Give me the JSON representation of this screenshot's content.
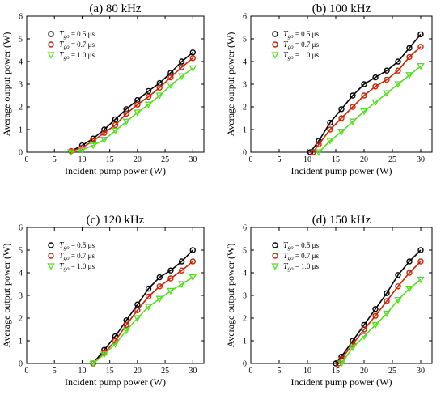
{
  "chart_data": [
    {
      "type": "line",
      "title": "(a) 80 kHz",
      "xlabel": "Incident pump power (W)",
      "ylabel": "Average output power (W)",
      "xlim": [
        0,
        32
      ],
      "ylim": [
        0,
        6
      ],
      "xticks": [
        0,
        5,
        10,
        15,
        20,
        25,
        30
      ],
      "yticks": [
        0,
        1,
        2,
        3,
        4,
        5,
        6
      ],
      "grid": false,
      "legend_position": "top-left",
      "series": [
        {
          "name": "T_go = 0.5 μs",
          "name_main": "T",
          "name_sub": "go",
          "name_rest": " = 0.5 μs",
          "marker": "circle",
          "color": "#000000",
          "x": [
            8,
            10,
            12,
            14,
            16,
            18,
            20,
            22,
            24,
            26,
            28,
            30
          ],
          "y": [
            0.05,
            0.3,
            0.6,
            1.0,
            1.45,
            1.9,
            2.3,
            2.7,
            3.05,
            3.5,
            4.0,
            4.4
          ]
        },
        {
          "name": "T_go = 0.7 μs",
          "name_main": "T",
          "name_sub": "go",
          "name_rest": " = 0.7 μs",
          "marker": "circle",
          "color": "#cc2200",
          "x": [
            8,
            10,
            12,
            14,
            16,
            18,
            20,
            22,
            24,
            26,
            28,
            30
          ],
          "y": [
            0.05,
            0.2,
            0.5,
            0.85,
            1.2,
            1.7,
            2.1,
            2.45,
            2.85,
            3.3,
            3.75,
            4.15
          ]
        },
        {
          "name": "T_go = 1.0 μs",
          "name_main": "T",
          "name_sub": "go",
          "name_rest": " = 1.0 μs",
          "marker": "triangle",
          "color": "#55dd22",
          "x": [
            8,
            10,
            12,
            14,
            16,
            18,
            20,
            22,
            24,
            26,
            28,
            30
          ],
          "y": [
            0.0,
            0.1,
            0.3,
            0.55,
            0.95,
            1.35,
            1.75,
            2.1,
            2.5,
            2.95,
            3.35,
            3.7
          ]
        }
      ]
    },
    {
      "type": "line",
      "title": "(b) 100 kHz",
      "xlabel": "Incident pump power (W)",
      "ylabel": "Average output power (W)",
      "xlim": [
        0,
        32
      ],
      "ylim": [
        0,
        6
      ],
      "xticks": [
        0,
        5,
        10,
        15,
        20,
        25,
        30
      ],
      "yticks": [
        0,
        1,
        2,
        3,
        4,
        5,
        6
      ],
      "grid": false,
      "legend_position": "top-left",
      "series": [
        {
          "name": "T_go = 0.5 μs",
          "name_main": "T",
          "name_sub": "go",
          "name_rest": " = 0.5 μs",
          "marker": "circle",
          "color": "#000000",
          "x": [
            10.5,
            12,
            14,
            16,
            18,
            20,
            22,
            24,
            26,
            28,
            30
          ],
          "y": [
            0.0,
            0.5,
            1.3,
            1.9,
            2.5,
            3.0,
            3.3,
            3.6,
            4.0,
            4.6,
            5.2
          ]
        },
        {
          "name": "T_go = 0.7 μs",
          "name_main": "T",
          "name_sub": "go",
          "name_rest": " = 0.7 μs",
          "marker": "circle",
          "color": "#cc2200",
          "x": [
            11,
            12,
            14,
            16,
            18,
            20,
            22,
            24,
            26,
            28,
            30
          ],
          "y": [
            0.0,
            0.35,
            1.0,
            1.5,
            2.0,
            2.5,
            2.9,
            3.2,
            3.6,
            4.2,
            4.65
          ]
        },
        {
          "name": "T_go = 1.0 μs",
          "name_main": "T",
          "name_sub": "go",
          "name_rest": " = 1.0 μs",
          "marker": "triangle",
          "color": "#55dd22",
          "x": [
            12,
            14,
            16,
            18,
            20,
            22,
            24,
            26,
            28,
            30
          ],
          "y": [
            0.0,
            0.5,
            0.9,
            1.35,
            1.8,
            2.2,
            2.6,
            3.0,
            3.4,
            3.8
          ]
        }
      ]
    },
    {
      "type": "line",
      "title": "(c) 120 kHz",
      "xlabel": "Incident pump power (W)",
      "ylabel": "Average output power (W)",
      "xlim": [
        0,
        32
      ],
      "ylim": [
        0,
        6
      ],
      "xticks": [
        0,
        5,
        10,
        15,
        20,
        25,
        30
      ],
      "yticks": [
        0,
        1,
        2,
        3,
        4,
        5,
        6
      ],
      "grid": false,
      "legend_position": "top-left",
      "series": [
        {
          "name": "T_go = 0.5 μs",
          "name_main": "T",
          "name_sub": "go",
          "name_rest": " = 0.5 μs",
          "marker": "circle",
          "color": "#000000",
          "x": [
            12,
            14,
            16,
            18,
            20,
            22,
            24,
            26,
            28,
            30
          ],
          "y": [
            0.0,
            0.6,
            1.2,
            1.9,
            2.6,
            3.3,
            3.8,
            4.1,
            4.5,
            5.0
          ]
        },
        {
          "name": "T_go = 0.7 μs",
          "name_main": "T",
          "name_sub": "go",
          "name_rest": " = 0.7 μs",
          "marker": "circle",
          "color": "#cc2200",
          "x": [
            12,
            14,
            16,
            18,
            20,
            22,
            24,
            26,
            28,
            30
          ],
          "y": [
            0.0,
            0.45,
            1.0,
            1.7,
            2.35,
            2.95,
            3.4,
            3.75,
            4.1,
            4.5
          ]
        },
        {
          "name": "T_go = 1.0 μs",
          "name_main": "T",
          "name_sub": "go",
          "name_rest": " = 1.0 μs",
          "marker": "triangle",
          "color": "#55dd22",
          "x": [
            12,
            14,
            16,
            18,
            20,
            22,
            24,
            26,
            28,
            30
          ],
          "y": [
            0.0,
            0.4,
            0.85,
            1.45,
            2.0,
            2.5,
            2.85,
            3.2,
            3.5,
            3.8
          ]
        }
      ]
    },
    {
      "type": "line",
      "title": "(d) 150 kHz",
      "xlabel": "Incident pump power (W)",
      "ylabel": "Average output power (W)",
      "xlim": [
        0,
        32
      ],
      "ylim": [
        0,
        6
      ],
      "xticks": [
        0,
        5,
        10,
        15,
        20,
        25,
        30
      ],
      "yticks": [
        0,
        1,
        2,
        3,
        4,
        5,
        6
      ],
      "grid": false,
      "legend_position": "top-left",
      "series": [
        {
          "name": "T_go = 0.5 μs",
          "name_main": "T",
          "name_sub": "go",
          "name_rest": " = 0.5 μs",
          "marker": "circle",
          "color": "#000000",
          "x": [
            15,
            16,
            18,
            20,
            22,
            24,
            26,
            28,
            30
          ],
          "y": [
            0.0,
            0.3,
            1.0,
            1.7,
            2.4,
            3.1,
            3.9,
            4.5,
            5.0
          ]
        },
        {
          "name": "T_go = 0.7 μs",
          "name_main": "T",
          "name_sub": "go",
          "name_rest": " = 0.7 μs",
          "marker": "circle",
          "color": "#cc2200",
          "x": [
            15.5,
            16,
            18,
            20,
            22,
            24,
            26,
            28,
            30
          ],
          "y": [
            0.0,
            0.2,
            0.85,
            1.5,
            2.1,
            2.75,
            3.4,
            4.0,
            4.5
          ]
        },
        {
          "name": "T_go = 1.0 μs",
          "name_main": "T",
          "name_sub": "go",
          "name_rest": " = 1.0 μs",
          "marker": "triangle",
          "color": "#55dd22",
          "x": [
            16,
            18,
            20,
            22,
            24,
            26,
            28,
            30
          ],
          "y": [
            0.0,
            0.7,
            1.2,
            1.7,
            2.2,
            2.8,
            3.3,
            3.7
          ]
        }
      ]
    }
  ]
}
